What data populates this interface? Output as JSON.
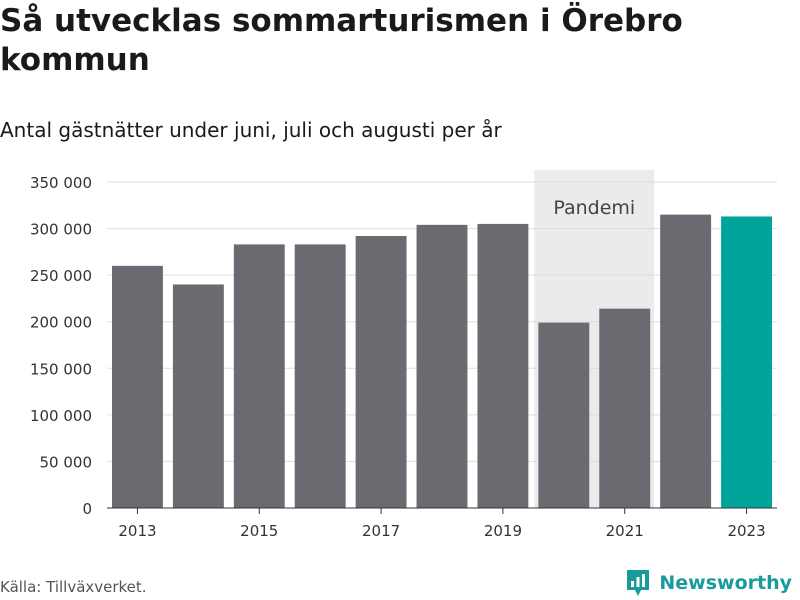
{
  "title": "Så utvecklas sommarturismen i Örebro kommun",
  "subtitle": "Antal gästnätter under juni, juli och augusti per år",
  "source": "Källa: Tillväxverket.",
  "brand": {
    "name": "Newsworthy",
    "color": "#1a9b9b"
  },
  "chart_data": {
    "type": "bar",
    "categories": [
      "2013",
      "2014",
      "2015",
      "2016",
      "2017",
      "2018",
      "2019",
      "2020",
      "2021",
      "2022",
      "2023"
    ],
    "values": [
      260000,
      240000,
      283000,
      283000,
      292000,
      304000,
      305000,
      199000,
      214000,
      315000,
      313000
    ],
    "ylim": [
      0,
      350000
    ],
    "yticks": [
      0,
      50000,
      100000,
      150000,
      200000,
      250000,
      300000,
      350000
    ],
    "ytick_labels": [
      "0",
      "50 000",
      "100 000",
      "150 000",
      "200 000",
      "250 000",
      "300 000",
      "350 000"
    ],
    "xtick_labels": [
      "2013",
      "2015",
      "2017",
      "2019",
      "2021",
      "2023"
    ],
    "xlabel": "",
    "ylabel": "",
    "grid": true,
    "bar_color": "#6b6a70",
    "highlight_color": "#00a49b",
    "highlight_category": "2023",
    "annotation": {
      "label": "Pandemi",
      "from": "2020",
      "to": "2021",
      "color": "#ebebeb"
    }
  }
}
